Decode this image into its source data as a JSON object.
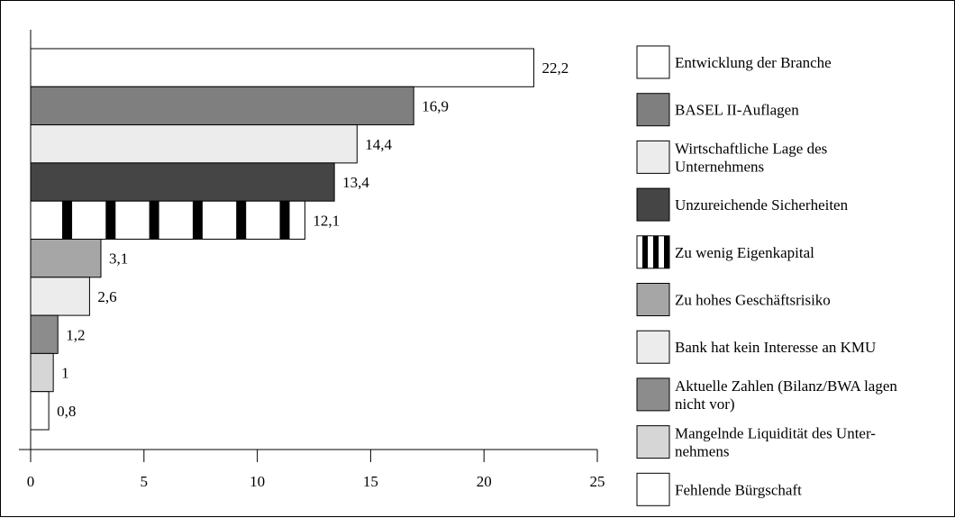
{
  "chart_data": {
    "type": "bar",
    "orientation": "horizontal",
    "title": "",
    "xlabel": "",
    "ylabel": "",
    "xlim": [
      0,
      25
    ],
    "x_ticks": [
      0,
      5,
      10,
      15,
      20,
      25
    ],
    "grid": false,
    "legend_placement": "right",
    "categories": [
      "Entwicklung der Branche",
      "BASEL II-Auflagen",
      "Wirtschaftliche Lage des Unternehmens",
      "Unzureichende Sicherheiten",
      "Zu wenig Eigenkapital",
      "Zu hohes Geschäftsrisiko",
      "Bank hat kein Interesse an KMU",
      "Aktuelle Zahlen (Bilanz/BWA lagen nicht vor)",
      "Mangelnde Liquidität des Unternehmens",
      "Fehlende Bürgschaft"
    ],
    "values": [
      22.2,
      16.9,
      14.4,
      13.4,
      12.1,
      3.1,
      2.6,
      1.2,
      1,
      0.8
    ],
    "value_labels": [
      "22,2",
      "16,9",
      "14,4",
      "13,4",
      "12,1",
      "3,1",
      "2,6",
      "1,2",
      "1",
      "0,8"
    ],
    "legend": [
      {
        "lines": [
          "Entwicklung der Branche"
        ],
        "fill": "#ffffff",
        "pattern": "solid"
      },
      {
        "lines": [
          "BASEL II-Auflagen"
        ],
        "fill": "#7f7f7f",
        "pattern": "solid"
      },
      {
        "lines": [
          "Wirtschaftliche Lage des",
          "Unternehmens"
        ],
        "fill": "#ececec",
        "pattern": "solid"
      },
      {
        "lines": [
          "Unzureichende Sicherheiten"
        ],
        "fill": "#454545",
        "pattern": "solid"
      },
      {
        "lines": [
          "Zu wenig Eigenkapital"
        ],
        "fill": "#ffffff",
        "pattern": "vertical-stripes"
      },
      {
        "lines": [
          "Zu hohes Geschäftsrisiko"
        ],
        "fill": "#a6a6a6",
        "pattern": "solid"
      },
      {
        "lines": [
          "Bank hat kein Interesse an KMU"
        ],
        "fill": "#ececec",
        "pattern": "solid"
      },
      {
        "lines": [
          "Aktuelle Zahlen (Bilanz/BWA lagen",
          "nicht vor)"
        ],
        "fill": "#8c8c8c",
        "pattern": "solid"
      },
      {
        "lines": [
          "Mangelnde Liquidität des Unter-",
          "nehmens"
        ],
        "fill": "#d6d6d6",
        "pattern": "solid"
      },
      {
        "lines": [
          "Fehlende Bürgschaft"
        ],
        "fill": "#ffffff",
        "pattern": "solid"
      }
    ]
  }
}
